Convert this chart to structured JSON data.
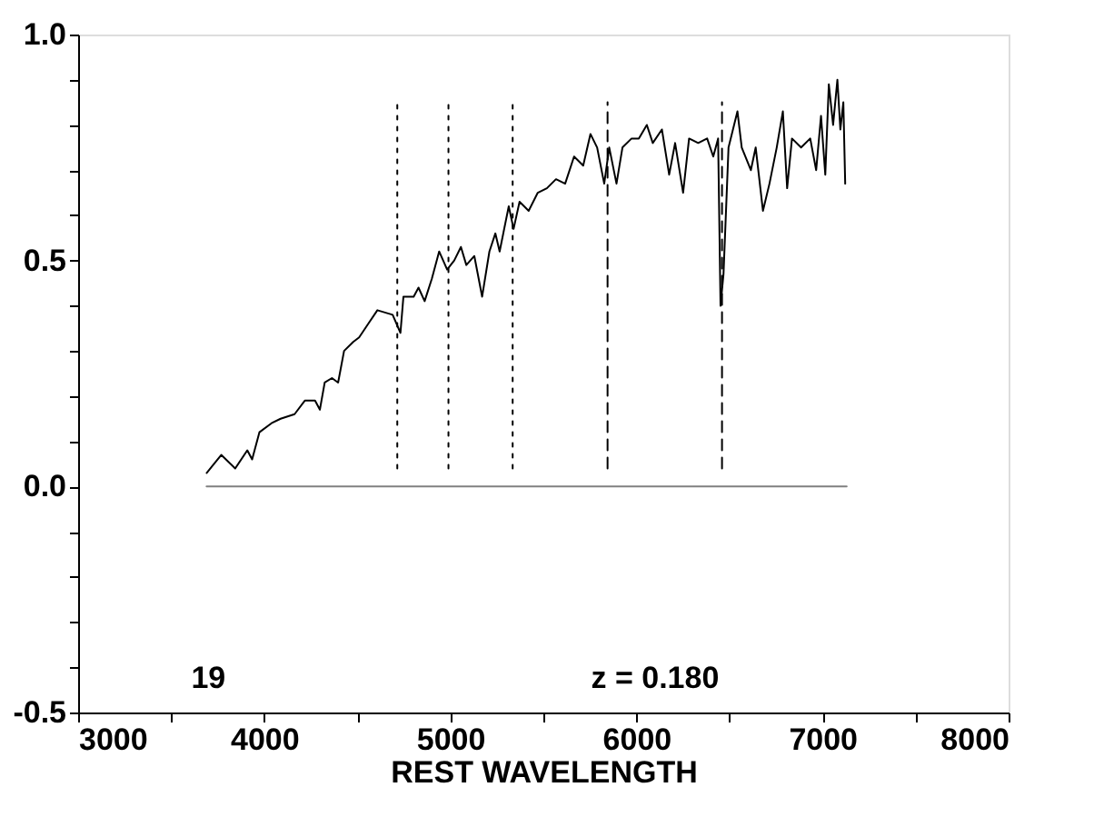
{
  "chart_data": {
    "type": "line",
    "xlabel": "REST WAVELENGTH",
    "annotations": [
      "19",
      "z = 0.180"
    ],
    "xlim": [
      3000,
      8000
    ],
    "ylim": [
      -0.5,
      1.0
    ],
    "xticks": [
      3000,
      4000,
      5000,
      6000,
      7000,
      8000,
      {
        "value": 3500,
        "label": null
      },
      {
        "value": 4500,
        "label": null
      },
      {
        "value": 5500,
        "label": null
      },
      {
        "value": 6500,
        "label": null
      },
      {
        "value": 7500,
        "label": null
      }
    ],
    "yticks": [
      {
        "value": -0.5,
        "label": "-0.5"
      },
      {
        "value": 0.0,
        "label": "0.0"
      },
      {
        "value": 0.5,
        "label": "0.5"
      },
      {
        "value": 1.0,
        "label": "1.0"
      },
      {
        "value": -0.4,
        "label": null
      },
      {
        "value": -0.3,
        "label": null
      },
      {
        "value": -0.2,
        "label": null
      },
      {
        "value": -0.1,
        "label": null
      },
      {
        "value": 0.1,
        "label": null
      },
      {
        "value": 0.2,
        "label": null
      },
      {
        "value": 0.3,
        "label": null
      },
      {
        "value": 0.4,
        "label": null
      },
      {
        "value": 0.6,
        "label": null
      },
      {
        "value": 0.7,
        "label": null
      },
      {
        "value": 0.8,
        "label": null
      },
      {
        "value": 0.9,
        "label": null
      }
    ],
    "grid": false,
    "marker": "none",
    "series": [
      {
        "color": "#000000",
        "line_style": "solid",
        "x": [
          3691,
          3769,
          3844,
          3909,
          3935,
          3974,
          4039,
          4088,
          4163,
          4218,
          4273,
          4299,
          4325,
          4364,
          4397,
          4429,
          4478,
          4510,
          4559,
          4608,
          4690,
          4732,
          4748,
          4803,
          4829,
          4862,
          4901,
          4940,
          4983,
          5021,
          5057,
          5086,
          5129,
          5171,
          5210,
          5242,
          5265,
          5314,
          5340,
          5372,
          5421,
          5470,
          5519,
          5568,
          5617,
          5665,
          5714,
          5753,
          5789,
          5827,
          5854,
          5893,
          5925,
          5974,
          6013,
          6056,
          6088,
          6137,
          6176,
          6208,
          6251,
          6283,
          6332,
          6380,
          6413,
          6439,
          6452,
          6468,
          6495,
          6543,
          6566,
          6615,
          6641,
          6680,
          6715,
          6754,
          6787,
          6810,
          6836,
          6885,
          6934,
          6966,
          6992,
          7015,
          7034,
          7057,
          7080,
          7096,
          7112,
          7122
        ],
        "values": [
          0.03,
          0.07,
          0.04,
          0.08,
          0.06,
          0.12,
          0.14,
          0.15,
          0.16,
          0.19,
          0.19,
          0.17,
          0.23,
          0.24,
          0.23,
          0.3,
          0.32,
          0.33,
          0.36,
          0.39,
          0.38,
          0.34,
          0.42,
          0.42,
          0.44,
          0.41,
          0.46,
          0.52,
          0.48,
          0.5,
          0.53,
          0.49,
          0.51,
          0.42,
          0.52,
          0.56,
          0.52,
          0.62,
          0.57,
          0.63,
          0.61,
          0.65,
          0.66,
          0.68,
          0.67,
          0.73,
          0.71,
          0.78,
          0.75,
          0.67,
          0.75,
          0.67,
          0.75,
          0.77,
          0.77,
          0.8,
          0.76,
          0.79,
          0.69,
          0.76,
          0.65,
          0.77,
          0.76,
          0.77,
          0.73,
          0.77,
          0.4,
          0.47,
          0.75,
          0.83,
          0.75,
          0.7,
          0.75,
          0.61,
          0.67,
          0.75,
          0.83,
          0.66,
          0.77,
          0.75,
          0.77,
          0.7,
          0.82,
          0.69,
          0.89,
          0.8,
          0.9,
          0.79,
          0.85,
          0.67
        ]
      },
      {
        "color": "#808080",
        "line_style": "solid",
        "x": [
          3690,
          7130
        ],
        "values": [
          0.0,
          0.0
        ]
      },
      {
        "color": "#000000",
        "line_style": "dotted",
        "x": [
          4715,
          4715
        ],
        "values": [
          0.04,
          0.85
        ]
      },
      {
        "color": "#000000",
        "line_style": "dotted",
        "x": [
          4990,
          4990
        ],
        "values": [
          0.04,
          0.85
        ]
      },
      {
        "color": "#000000",
        "line_style": "dotted",
        "x": [
          5335,
          5335
        ],
        "values": [
          0.04,
          0.85
        ]
      },
      {
        "color": "#000000",
        "line_style": "dashed",
        "x": [
          5845,
          5845
        ],
        "values": [
          0.04,
          0.85
        ]
      },
      {
        "color": "#000000",
        "line_style": "dashed",
        "x": [
          6460,
          6460
        ],
        "values": [
          0.04,
          0.85
        ]
      }
    ]
  }
}
